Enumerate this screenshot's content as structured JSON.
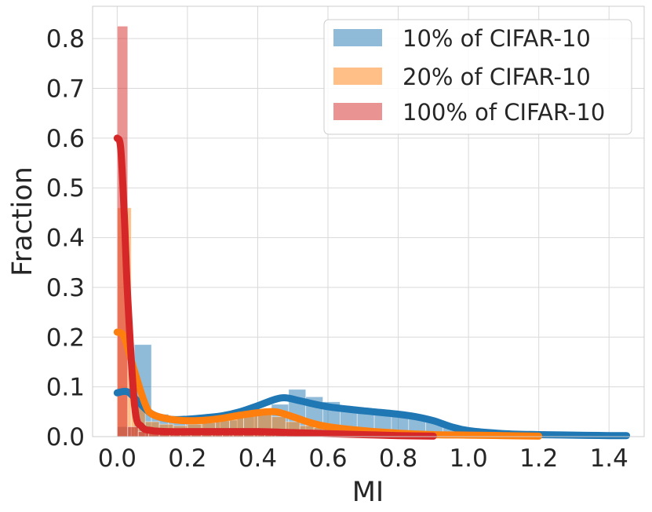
{
  "chart_data": {
    "type": "histogram+kde",
    "title": "",
    "xlabel": "MI",
    "ylabel": "Fraction",
    "xlim": [
      -0.07,
      1.5
    ],
    "ylim": [
      0,
      0.865
    ],
    "grid": true,
    "legend_position": "top-right",
    "x_ticks": [
      "0.0",
      "0.2",
      "0.4",
      "0.6",
      "0.8",
      "1.0",
      "1.2",
      "1.4"
    ],
    "x_tick_values": [
      0.0,
      0.2,
      0.4,
      0.6,
      0.8,
      1.0,
      1.2,
      1.4
    ],
    "y_ticks": [
      "0.0",
      "0.1",
      "0.2",
      "0.3",
      "0.4",
      "0.5",
      "0.6",
      "0.7",
      "0.8"
    ],
    "y_tick_values": [
      0.0,
      0.1,
      0.2,
      0.3,
      0.4,
      0.5,
      0.6,
      0.7,
      0.8
    ],
    "series": [
      {
        "name": "10% of CIFAR-10",
        "color": "#1f77b4",
        "bin_width": 0.0488,
        "bins_start": 0.0,
        "hist": [
          0.02,
          0.185,
          0.045,
          0.03,
          0.028,
          0.03,
          0.033,
          0.04,
          0.05,
          0.065,
          0.095,
          0.08,
          0.07,
          0.06,
          0.055,
          0.05,
          0.045,
          0.04,
          0.03,
          0.02,
          0.015,
          0.01,
          0.008,
          0.006,
          0.005,
          0.004,
          0.003,
          0.002,
          0.002,
          0.001
        ],
        "kde_x": [
          0.0,
          0.03,
          0.06,
          0.1,
          0.15,
          0.2,
          0.25,
          0.3,
          0.35,
          0.4,
          0.45,
          0.48,
          0.52,
          0.6,
          0.7,
          0.8,
          0.85,
          0.9,
          0.95,
          1.0,
          1.1,
          1.2,
          1.3,
          1.4,
          1.45
        ],
        "kde_y": [
          0.088,
          0.09,
          0.07,
          0.045,
          0.035,
          0.035,
          0.038,
          0.042,
          0.05,
          0.062,
          0.075,
          0.078,
          0.072,
          0.06,
          0.052,
          0.045,
          0.04,
          0.032,
          0.02,
          0.012,
          0.006,
          0.004,
          0.003,
          0.002,
          0.002
        ]
      },
      {
        "name": "20% of CIFAR-10",
        "color": "#ff7f0e",
        "bin_width": 0.04,
        "bins_start": 0.0,
        "hist": [
          0.46,
          0.06,
          0.03,
          0.025,
          0.022,
          0.025,
          0.028,
          0.032,
          0.038,
          0.042,
          0.045,
          0.04,
          0.03,
          0.022,
          0.018,
          0.015,
          0.012,
          0.01,
          0.008,
          0.006,
          0.005,
          0.004,
          0.003,
          0.003,
          0.002,
          0.002,
          0.002,
          0.001,
          0.001,
          0.001
        ],
        "kde_x": [
          0.0,
          0.02,
          0.05,
          0.08,
          0.1,
          0.15,
          0.2,
          0.25,
          0.3,
          0.35,
          0.4,
          0.45,
          0.5,
          0.55,
          0.6,
          0.7,
          0.8,
          0.9,
          1.0,
          1.1,
          1.2
        ],
        "kde_y": [
          0.21,
          0.2,
          0.13,
          0.065,
          0.045,
          0.035,
          0.032,
          0.033,
          0.037,
          0.043,
          0.048,
          0.05,
          0.04,
          0.028,
          0.02,
          0.012,
          0.007,
          0.004,
          0.003,
          0.002,
          0.001
        ]
      },
      {
        "name": "100% of CIFAR-10",
        "color": "#d62728",
        "bin_width": 0.03,
        "bins_start": 0.0,
        "hist": [
          0.825,
          0.02,
          0.01,
          0.008,
          0.008,
          0.008,
          0.008,
          0.008,
          0.008,
          0.008,
          0.008,
          0.008,
          0.008,
          0.008,
          0.008,
          0.007,
          0.007,
          0.006,
          0.006,
          0.005,
          0.004,
          0.004,
          0.003,
          0.003,
          0.002,
          0.002,
          0.001,
          0.001,
          0.001,
          0.001
        ],
        "kde_x": [
          0.0,
          0.01,
          0.02,
          0.03,
          0.05,
          0.07,
          0.1,
          0.15,
          0.2,
          0.3,
          0.4,
          0.5,
          0.6,
          0.7,
          0.8,
          0.9
        ],
        "kde_y": [
          0.6,
          0.58,
          0.45,
          0.28,
          0.06,
          0.02,
          0.012,
          0.01,
          0.01,
          0.01,
          0.01,
          0.008,
          0.006,
          0.004,
          0.002,
          0.001
        ]
      }
    ]
  }
}
